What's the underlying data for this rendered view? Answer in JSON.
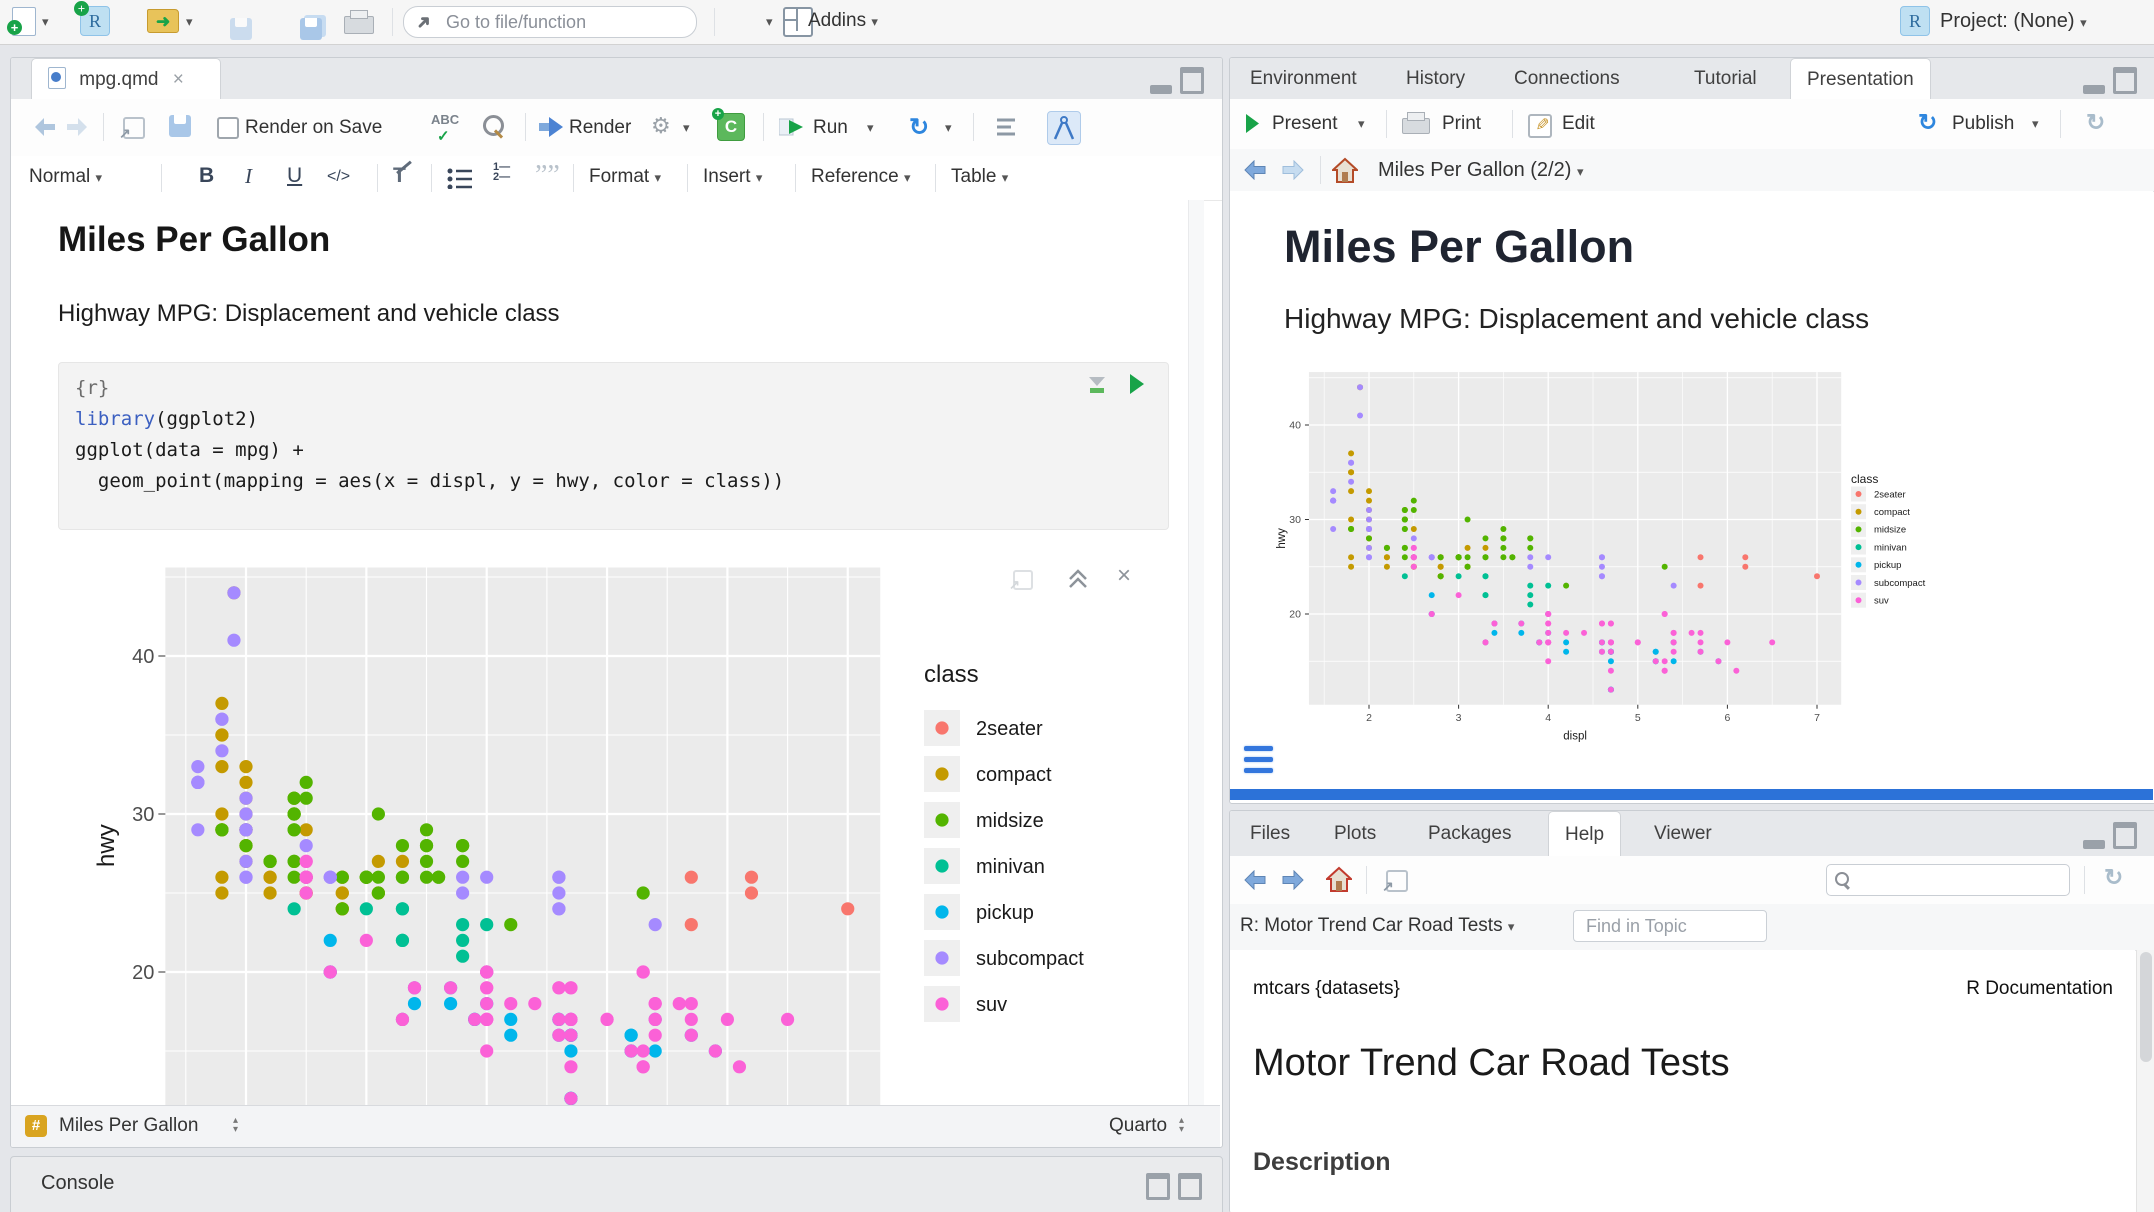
{
  "app": {
    "project_label": "Project: (None)"
  },
  "top_toolbar": {
    "goto_placeholder": "Go to file/function",
    "addins_label": "Addins"
  },
  "editor": {
    "tab": "mpg.qmd",
    "toolbar": {
      "render_on_save": "Render on Save",
      "render": "Render",
      "run": "Run"
    },
    "format_bar": {
      "paragraph_style": "Normal",
      "bold": "B",
      "italic": "I",
      "underline": "U",
      "code": "</>",
      "format": "Format",
      "insert": "Insert",
      "reference": "Reference",
      "table": "Table"
    },
    "doc": {
      "heading": "Miles Per Gallon",
      "paragraph": "Highway MPG: Displacement and vehicle class",
      "chunk": {
        "header": "{r}",
        "line1_fn": "library",
        "line1_rest": "(ggplot2)",
        "line2": "ggplot(data = mpg) +",
        "line3": "  geom_point(mapping = aes(x = displ, y = hwy, color = class))"
      }
    },
    "status_bar": {
      "left": "Miles Per Gallon",
      "right": "Quarto"
    }
  },
  "console": {
    "title": "Console"
  },
  "right_top": {
    "tabs": [
      "Environment",
      "History",
      "Connections",
      "Tutorial",
      "Presentation"
    ],
    "toolbar": {
      "present": "Present",
      "print": "Print",
      "edit": "Edit",
      "publish": "Publish"
    },
    "nav": {
      "slide": "Miles Per Gallon (2/2)"
    },
    "slide": {
      "title": "Miles Per Gallon",
      "subtitle": "Highway MPG: Displacement and vehicle class"
    }
  },
  "right_bottom": {
    "tabs": [
      "Files",
      "Plots",
      "Packages",
      "Help",
      "Viewer"
    ],
    "help": {
      "topic": "R: Motor Trend Car Road Tests",
      "find_placeholder": "Find in Topic",
      "page_ref": "mtcars {datasets}",
      "page_kind": "R Documentation",
      "title": "Motor Trend Car Road Tests",
      "section": "Description"
    }
  },
  "chart_data": {
    "type": "scatter",
    "title": "",
    "xlabel": "displ",
    "ylabel": "hwy",
    "legend_title": "class",
    "x_ticks": [
      2,
      3,
      4,
      5,
      6,
      7
    ],
    "y_ticks": [
      20,
      30,
      40
    ],
    "xlim": [
      1.33,
      7.27
    ],
    "ylim": [
      10.4,
      45.6
    ],
    "classes": [
      "2seater",
      "compact",
      "midsize",
      "minivan",
      "pickup",
      "subcompact",
      "suv"
    ],
    "colors": [
      "#F8766D",
      "#C49A00",
      "#53B400",
      "#00C094",
      "#00B6EB",
      "#A58AFF",
      "#FB61D7"
    ],
    "points": [
      [
        1.8,
        29,
        1
      ],
      [
        1.8,
        29,
        1
      ],
      [
        2.0,
        31,
        1
      ],
      [
        2.0,
        30,
        1
      ],
      [
        2.8,
        26,
        1
      ],
      [
        2.8,
        26,
        1
      ],
      [
        3.1,
        27,
        1
      ],
      [
        1.8,
        26,
        1
      ],
      [
        1.8,
        25,
        1
      ],
      [
        2.0,
        28,
        1
      ],
      [
        2.0,
        27,
        1
      ],
      [
        2.8,
        25,
        1
      ],
      [
        2.8,
        25,
        1
      ],
      [
        3.1,
        25,
        1
      ],
      [
        3.1,
        25,
        1
      ],
      [
        2.2,
        26,
        1
      ],
      [
        2.2,
        27,
        1
      ],
      [
        2.4,
        30,
        1
      ],
      [
        2.4,
        31,
        1
      ],
      [
        3.0,
        26,
        1
      ],
      [
        3.0,
        26,
        1
      ],
      [
        3.3,
        27,
        1
      ],
      [
        1.8,
        30,
        1
      ],
      [
        1.8,
        33,
        1
      ],
      [
        1.8,
        35,
        1
      ],
      [
        1.8,
        35,
        1
      ],
      [
        1.8,
        37,
        1
      ],
      [
        2.0,
        29,
        1
      ],
      [
        2.0,
        29,
        1
      ],
      [
        2.0,
        28,
        1
      ],
      [
        2.0,
        29,
        1
      ],
      [
        2.8,
        24,
        1
      ],
      [
        1.9,
        44,
        1
      ],
      [
        2.0,
        29,
        1
      ],
      [
        2.0,
        33,
        1
      ],
      [
        2.0,
        32,
        1
      ],
      [
        2.0,
        29,
        1
      ],
      [
        2.5,
        26,
        1
      ],
      [
        2.5,
        29,
        1
      ],
      [
        2.8,
        24,
        1
      ],
      [
        2.8,
        24,
        1
      ],
      [
        2.2,
        26,
        1
      ],
      [
        2.2,
        25,
        1
      ],
      [
        2.5,
        25,
        1
      ],
      [
        2.5,
        25,
        1
      ],
      [
        2.5,
        26,
        1
      ],
      [
        2.5,
        26,
        1
      ],
      [
        2.8,
        24,
        2
      ],
      [
        3.1,
        25,
        2
      ],
      [
        4.2,
        23,
        2
      ],
      [
        2.4,
        30,
        2
      ],
      [
        2.4,
        29,
        2
      ],
      [
        3.1,
        26,
        2
      ],
      [
        3.5,
        29,
        2
      ],
      [
        3.6,
        26,
        2
      ],
      [
        2.4,
        26,
        2
      ],
      [
        2.4,
        27,
        2
      ],
      [
        2.4,
        30,
        2
      ],
      [
        2.4,
        31,
        2
      ],
      [
        3.3,
        26,
        2
      ],
      [
        3.3,
        26,
        2
      ],
      [
        3.3,
        28,
        2
      ],
      [
        2.4,
        29,
        2
      ],
      [
        2.4,
        27,
        2
      ],
      [
        2.5,
        31,
        2
      ],
      [
        2.5,
        32,
        2
      ],
      [
        3.5,
        26,
        2
      ],
      [
        3.5,
        27,
        2
      ],
      [
        3.0,
        26,
        2
      ],
      [
        3.0,
        26,
        2
      ],
      [
        3.5,
        28,
        2
      ],
      [
        3.1,
        30,
        2
      ],
      [
        3.8,
        28,
        2
      ],
      [
        3.8,
        28,
        2
      ],
      [
        3.8,
        27,
        2
      ],
      [
        5.3,
        25,
        2
      ],
      [
        2.2,
        27,
        2
      ],
      [
        2.2,
        27,
        2
      ],
      [
        2.4,
        30,
        2
      ],
      [
        2.4,
        31,
        2
      ],
      [
        3.0,
        26,
        2
      ],
      [
        3.0,
        26,
        2
      ],
      [
        3.5,
        28,
        2
      ],
      [
        1.8,
        29,
        2
      ],
      [
        1.8,
        29,
        2
      ],
      [
        2.0,
        28,
        2
      ],
      [
        2.8,
        26,
        2
      ],
      [
        3.6,
        26,
        2
      ],
      [
        2.4,
        24,
        3
      ],
      [
        3.0,
        24,
        3
      ],
      [
        3.3,
        22,
        3
      ],
      [
        3.3,
        22,
        3
      ],
      [
        3.3,
        24,
        3
      ],
      [
        3.3,
        24,
        3
      ],
      [
        3.3,
        17,
        3
      ],
      [
        3.8,
        22,
        3
      ],
      [
        3.8,
        21,
        3
      ],
      [
        3.8,
        23,
        3
      ],
      [
        4.0,
        23,
        3
      ],
      [
        3.7,
        19,
        4
      ],
      [
        3.7,
        18,
        4
      ],
      [
        3.9,
        17,
        4
      ],
      [
        3.9,
        17,
        4
      ],
      [
        4.7,
        16,
        4
      ],
      [
        4.7,
        16,
        4
      ],
      [
        4.7,
        12,
        4
      ],
      [
        5.2,
        15,
        4
      ],
      [
        5.2,
        16,
        4
      ],
      [
        4.7,
        16,
        4
      ],
      [
        4.7,
        17,
        4
      ],
      [
        4.7,
        15,
        4
      ],
      [
        4.7,
        12,
        4
      ],
      [
        4.7,
        12,
        4
      ],
      [
        4.7,
        16,
        4
      ],
      [
        5.2,
        16,
        4
      ],
      [
        5.2,
        15,
        4
      ],
      [
        5.7,
        16,
        4
      ],
      [
        5.9,
        15,
        4
      ],
      [
        4.2,
        17,
        4
      ],
      [
        4.2,
        16,
        4
      ],
      [
        4.6,
        16,
        4
      ],
      [
        4.6,
        17,
        4
      ],
      [
        4.6,
        17,
        4
      ],
      [
        5.4,
        17,
        4
      ],
      [
        5.4,
        15,
        4
      ],
      [
        2.7,
        20,
        4
      ],
      [
        2.7,
        20,
        4
      ],
      [
        2.7,
        22,
        4
      ],
      [
        3.4,
        19,
        4
      ],
      [
        3.4,
        18,
        4
      ],
      [
        4.0,
        20,
        4
      ],
      [
        4.0,
        18,
        4
      ],
      [
        3.8,
        26,
        5
      ],
      [
        3.8,
        25,
        5
      ],
      [
        4.0,
        26,
        5
      ],
      [
        4.6,
        24,
        5
      ],
      [
        4.6,
        25,
        5
      ],
      [
        4.6,
        26,
        5
      ],
      [
        4.6,
        24,
        5
      ],
      [
        4.6,
        26,
        5
      ],
      [
        5.4,
        23,
        5
      ],
      [
        1.6,
        33,
        5
      ],
      [
        1.6,
        32,
        5
      ],
      [
        1.6,
        32,
        5
      ],
      [
        1.6,
        29,
        5
      ],
      [
        1.6,
        32,
        5
      ],
      [
        1.8,
        34,
        5
      ],
      [
        1.8,
        36,
        5
      ],
      [
        1.8,
        36,
        5
      ],
      [
        2.0,
        29,
        5
      ],
      [
        2.0,
        26,
        5
      ],
      [
        2.0,
        27,
        5
      ],
      [
        2.0,
        30,
        5
      ],
      [
        2.0,
        31,
        5
      ],
      [
        2.7,
        26,
        5
      ],
      [
        2.7,
        26,
        5
      ],
      [
        2.7,
        26,
        5
      ],
      [
        1.9,
        44,
        5
      ],
      [
        1.9,
        41,
        5
      ],
      [
        2.0,
        29,
        5
      ],
      [
        2.0,
        29,
        5
      ],
      [
        2.5,
        26,
        5
      ],
      [
        2.5,
        28,
        5
      ],
      [
        2.0,
        29,
        5
      ],
      [
        1.6,
        32,
        5
      ],
      [
        2.0,
        26,
        5
      ],
      [
        2.5,
        26,
        5
      ],
      [
        5.3,
        20,
        6
      ],
      [
        5.3,
        15,
        6
      ],
      [
        5.3,
        20,
        6
      ],
      [
        5.7,
        17,
        6
      ],
      [
        6.0,
        17,
        6
      ],
      [
        5.3,
        14,
        6
      ],
      [
        5.3,
        14,
        6
      ],
      [
        5.7,
        16,
        6
      ],
      [
        6.5,
        17,
        6
      ],
      [
        3.9,
        17,
        6
      ],
      [
        4.7,
        17,
        6
      ],
      [
        4.7,
        17,
        6
      ],
      [
        4.7,
        16,
        6
      ],
      [
        4.7,
        14,
        6
      ],
      [
        5.2,
        15,
        6
      ],
      [
        5.9,
        15,
        6
      ],
      [
        4.6,
        17,
        6
      ],
      [
        5.4,
        17,
        6
      ],
      [
        5.4,
        18,
        6
      ],
      [
        4.0,
        17,
        6
      ],
      [
        4.0,
        17,
        6
      ],
      [
        4.0,
        18,
        6
      ],
      [
        4.0,
        17,
        6
      ],
      [
        4.6,
        19,
        6
      ],
      [
        5.0,
        17,
        6
      ],
      [
        3.0,
        22,
        6
      ],
      [
        3.7,
        19,
        6
      ],
      [
        4.0,
        19,
        6
      ],
      [
        4.0,
        20,
        6
      ],
      [
        4.7,
        19,
        6
      ],
      [
        4.7,
        19,
        6
      ],
      [
        4.7,
        12,
        6
      ],
      [
        6.1,
        14,
        6
      ],
      [
        4.0,
        15,
        6
      ],
      [
        4.2,
        18,
        6
      ],
      [
        4.4,
        18,
        6
      ],
      [
        4.6,
        16,
        6
      ],
      [
        5.4,
        17,
        6
      ],
      [
        5.4,
        16,
        6
      ],
      [
        5.4,
        18,
        6
      ],
      [
        4.0,
        17,
        6
      ],
      [
        4.0,
        19,
        6
      ],
      [
        4.6,
        19,
        6
      ],
      [
        5.0,
        17,
        6
      ],
      [
        3.3,
        17,
        6
      ],
      [
        3.3,
        17,
        6
      ],
      [
        4.0,
        20,
        6
      ],
      [
        5.6,
        18,
        6
      ],
      [
        2.5,
        25,
        6
      ],
      [
        2.5,
        26,
        6
      ],
      [
        2.5,
        26,
        6
      ],
      [
        2.5,
        27,
        6
      ],
      [
        2.5,
        27,
        6
      ],
      [
        2.5,
        26,
        6
      ],
      [
        2.7,
        20,
        6
      ],
      [
        2.7,
        20,
        6
      ],
      [
        3.4,
        19,
        6
      ],
      [
        3.4,
        19,
        6
      ],
      [
        4.0,
        20,
        6
      ],
      [
        4.7,
        17,
        6
      ],
      [
        4.7,
        17,
        6
      ],
      [
        5.7,
        18,
        6
      ],
      [
        5.7,
        26,
        0
      ],
      [
        5.7,
        23,
        0
      ],
      [
        6.2,
        26,
        0
      ],
      [
        6.2,
        25,
        0
      ],
      [
        7.0,
        24,
        0
      ]
    ]
  }
}
